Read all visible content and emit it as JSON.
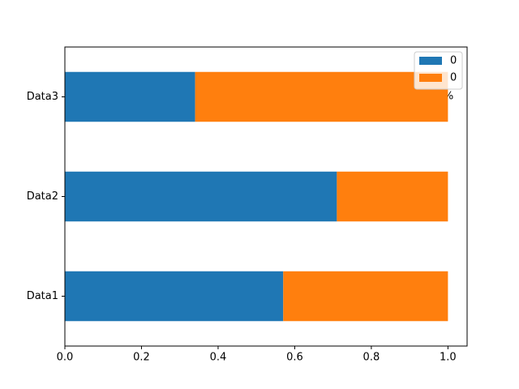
{
  "chart_data": {
    "type": "stacked-barh",
    "categories": [
      "Data1",
      "Data2",
      "Data3"
    ],
    "series": [
      {
        "name": "0",
        "color": "#1f77b4",
        "values": [
          0.57,
          0.71,
          0.34
        ]
      },
      {
        "name": "0",
        "color": "#ff7f0e",
        "values": [
          0.43,
          0.29,
          0.66
        ]
      }
    ],
    "annotation": "%",
    "xlim": [
      0,
      1.05
    ],
    "xticks": [
      {
        "value": 0,
        "label": "0.0"
      },
      {
        "value": 0.2,
        "label": "0.2"
      },
      {
        "value": 0.4,
        "label": "0.4"
      },
      {
        "value": 0.6,
        "label": "0.6"
      },
      {
        "value": 0.8,
        "label": "0.8"
      },
      {
        "value": 1,
        "label": "1.0"
      }
    ],
    "legend": "upper right"
  }
}
